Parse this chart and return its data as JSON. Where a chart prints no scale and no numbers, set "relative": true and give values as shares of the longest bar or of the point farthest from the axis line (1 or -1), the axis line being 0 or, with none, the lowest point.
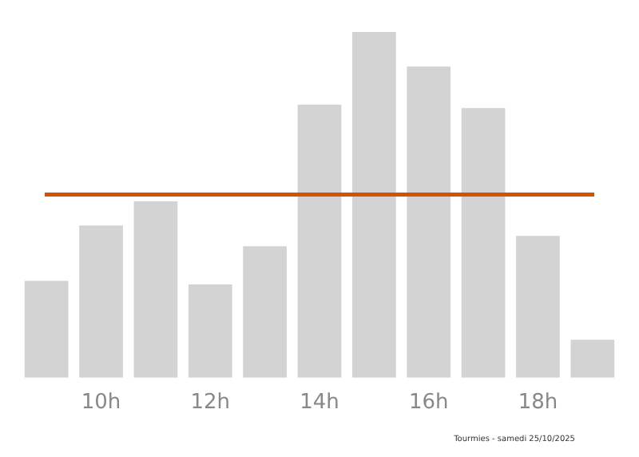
{
  "chart_data": {
    "type": "bar",
    "relative": true,
    "categories": [
      null,
      "10h",
      null,
      "12h",
      null,
      "14h",
      null,
      "16h",
      null,
      "18h",
      null
    ],
    "values": [
      0.28,
      0.44,
      0.51,
      0.27,
      0.38,
      0.79,
      1,
      0.9,
      0.78,
      0.41,
      0.11
    ],
    "color": "#d3d3d3",
    "ref_lines": [
      {
        "axis": "y",
        "value": 0.53,
        "color": "#d35400"
      }
    ],
    "annotations": [
      "Tourmies - samedi 25/10/2025"
    ],
    "grid": false,
    "legend": false
  }
}
